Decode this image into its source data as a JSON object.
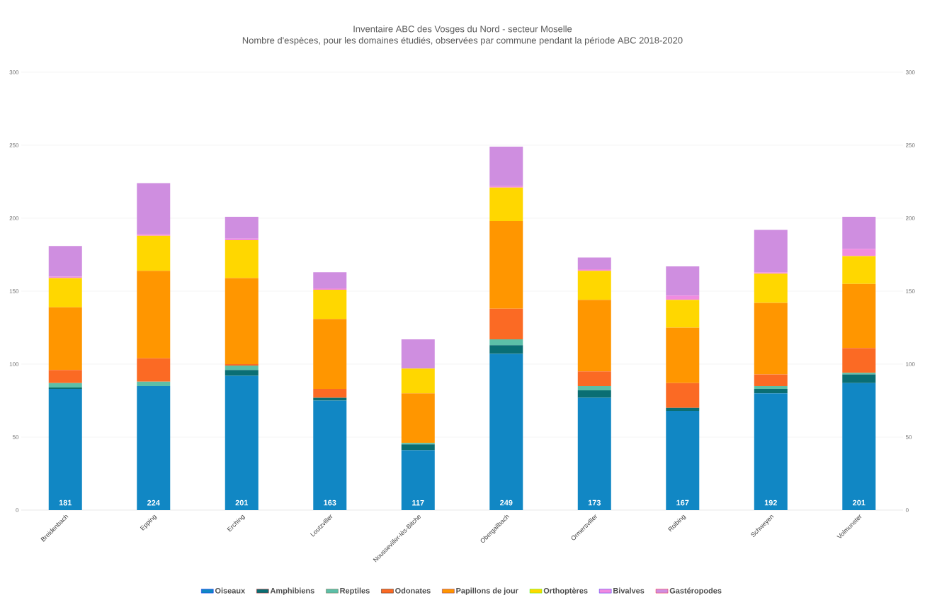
{
  "chart_data": {
    "type": "bar",
    "stacked": true,
    "title": "Inventaire ABC des Vosges du Nord - secteur Moselle",
    "subtitle": "Nombre d'espèces, pour les domaines étudiés, observées par commune pendant la période ABC 2018-2020",
    "categories": [
      "Breidenbach",
      "Epping",
      "Erching",
      "Loutzviller",
      "Nousseviller-lès-Bitche",
      "Obergailbach",
      "Ormersviller",
      "Rolbing",
      "Schweyen",
      "Volmunster"
    ],
    "series": [
      {
        "name": "Oiseaux",
        "color": "#1187c4",
        "values": [
          83,
          85,
          92,
          75,
          41,
          107,
          77,
          68,
          80,
          87
        ]
      },
      {
        "name": "Amphibiens",
        "color": "#0a6e73",
        "values": [
          1,
          0,
          4,
          2,
          4,
          6,
          5,
          2,
          3,
          6
        ]
      },
      {
        "name": "Reptiles",
        "color": "#5cbfa8",
        "values": [
          3,
          3,
          3,
          0,
          1,
          4,
          3,
          0,
          2,
          1
        ]
      },
      {
        "name": "Odonates",
        "color": "#fb6a24",
        "values": [
          9,
          16,
          1,
          6,
          0,
          21,
          10,
          17,
          8,
          17
        ]
      },
      {
        "name": "Papillons de jour",
        "color": "#ff9600",
        "values": [
          43,
          60,
          59,
          48,
          34,
          60,
          49,
          38,
          49,
          44
        ]
      },
      {
        "name": "Orthoptères",
        "color": "#ffd700",
        "values": [
          20,
          24,
          26,
          20,
          17,
          23,
          20,
          19,
          20,
          19
        ]
      },
      {
        "name": "Bivalves",
        "color": "#f08be0",
        "values": [
          1,
          1,
          1,
          1,
          0,
          1,
          1,
          3,
          1,
          5
        ]
      },
      {
        "name": "Gastéropodes",
        "color": "#cf8ee0",
        "values": [
          21,
          35,
          15,
          11,
          20,
          27,
          8,
          20,
          29,
          22
        ]
      }
    ],
    "totals": [
      "181",
      "224",
      "201",
      "163",
      "117",
      "249",
      "173",
      "167",
      "192",
      "201"
    ],
    "ylim": [
      0,
      300
    ],
    "yticks": [
      0,
      50,
      100,
      150,
      200,
      250,
      300
    ],
    "y2lim": [
      0,
      300
    ],
    "y2ticks": [
      0,
      50,
      100,
      150,
      200,
      250,
      300
    ],
    "grid": "y",
    "legend": "bottom"
  }
}
